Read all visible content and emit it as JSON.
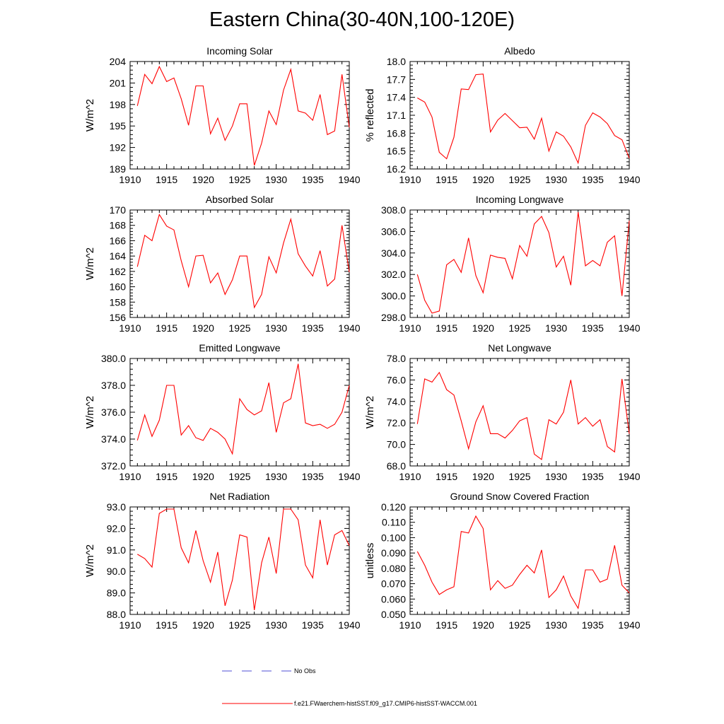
{
  "title": "Eastern China(30-40N,100-120E)",
  "legend": {
    "obs_label": "No Obs",
    "obs_color": "#4f4fd6",
    "model_label": "f.e21.FWaerchem-histSST.f09_g17.CMIP6-histSST-WACCM.001",
    "model_color": "#ff0000"
  },
  "chart_data": [
    {
      "type": "line",
      "title": "Incoming Solar",
      "ylabel": "W/m^2",
      "xlim": [
        1910,
        1940
      ],
      "ylim": [
        189,
        204
      ],
      "yticks": [
        189,
        192,
        195,
        198,
        201,
        204
      ],
      "ytick_labels": [
        "189",
        "192",
        "195",
        "198",
        "201",
        "204"
      ],
      "xticks": [
        1910,
        1915,
        1920,
        1925,
        1930,
        1935,
        1940
      ],
      "x": [
        1911,
        1912,
        1913,
        1914,
        1915,
        1916,
        1917,
        1918,
        1919,
        1920,
        1921,
        1922,
        1923,
        1924,
        1925,
        1926,
        1927,
        1928,
        1929,
        1930,
        1931,
        1932,
        1933,
        1934,
        1935,
        1936,
        1937,
        1938,
        1939,
        1940
      ],
      "values": [
        197.8,
        202.2,
        200.9,
        203.3,
        201.2,
        201.7,
        198.8,
        195.1,
        200.6,
        200.6,
        193.9,
        196.1,
        193.0,
        195.0,
        198.1,
        198.1,
        189.5,
        192.6,
        197.1,
        195.2,
        200.0,
        202.9,
        197.1,
        196.8,
        195.8,
        199.4,
        193.8,
        194.3,
        202.2,
        194.8
      ],
      "color": "#ff0000"
    },
    {
      "type": "line",
      "title": "Albedo",
      "ylabel": "% reflected",
      "xlim": [
        1910,
        1940
      ],
      "ylim": [
        16.2,
        18.0
      ],
      "yticks": [
        16.2,
        16.5,
        16.8,
        17.1,
        17.4,
        17.7,
        18.0
      ],
      "ytick_labels": [
        "16.2",
        "16.5",
        "16.8",
        "17.1",
        "17.4",
        "17.7",
        "18.0"
      ],
      "xticks": [
        1910,
        1915,
        1920,
        1925,
        1930,
        1935,
        1940
      ],
      "x": [
        1911,
        1912,
        1913,
        1914,
        1915,
        1916,
        1917,
        1918,
        1919,
        1920,
        1921,
        1922,
        1923,
        1924,
        1925,
        1926,
        1927,
        1928,
        1929,
        1930,
        1931,
        1932,
        1933,
        1934,
        1935,
        1936,
        1937,
        1938,
        1939,
        1940
      ],
      "values": [
        17.39,
        17.32,
        17.07,
        16.48,
        16.37,
        16.73,
        17.54,
        17.53,
        17.78,
        17.79,
        16.82,
        17.02,
        17.13,
        17.01,
        16.89,
        16.9,
        16.7,
        17.05,
        16.5,
        16.82,
        16.75,
        16.57,
        16.3,
        16.93,
        17.14,
        17.07,
        16.96,
        16.76,
        16.69,
        16.38
      ],
      "color": "#ff0000"
    },
    {
      "type": "line",
      "title": "Absorbed Solar",
      "ylabel": "W/m^2",
      "xlim": [
        1910,
        1940
      ],
      "ylim": [
        156,
        170
      ],
      "yticks": [
        156,
        158,
        160,
        162,
        164,
        166,
        168,
        170
      ],
      "ytick_labels": [
        "156",
        "158",
        "160",
        "162",
        "164",
        "166",
        "168",
        "170"
      ],
      "xticks": [
        1910,
        1915,
        1920,
        1925,
        1930,
        1935,
        1940
      ],
      "x": [
        1911,
        1912,
        1913,
        1914,
        1915,
        1916,
        1917,
        1918,
        1919,
        1920,
        1921,
        1922,
        1923,
        1924,
        1925,
        1926,
        1927,
        1928,
        1929,
        1930,
        1931,
        1932,
        1933,
        1934,
        1935,
        1936,
        1937,
        1938,
        1939,
        1940
      ],
      "values": [
        162.6,
        166.7,
        166.0,
        169.4,
        167.9,
        167.4,
        163.4,
        160.0,
        164.0,
        164.1,
        160.5,
        161.8,
        159.0,
        160.9,
        164.0,
        164.0,
        157.3,
        159.0,
        163.9,
        161.8,
        165.7,
        168.8,
        164.3,
        162.7,
        161.4,
        164.7,
        160.1,
        161.0,
        168.0,
        161.9
      ],
      "color": "#ff0000"
    },
    {
      "type": "line",
      "title": "Incoming Longwave",
      "ylabel": "",
      "xlim": [
        1910,
        1940
      ],
      "ylim": [
        298,
        308
      ],
      "yticks": [
        298,
        300,
        302,
        304,
        306,
        308
      ],
      "ytick_labels": [
        "298.0",
        "300.0",
        "302.0",
        "304.0",
        "306.0",
        "308.0"
      ],
      "xticks": [
        1910,
        1915,
        1920,
        1925,
        1930,
        1935,
        1940
      ],
      "x": [
        1911,
        1912,
        1913,
        1914,
        1915,
        1916,
        1917,
        1918,
        1919,
        1920,
        1921,
        1922,
        1923,
        1924,
        1925,
        1926,
        1927,
        1928,
        1929,
        1930,
        1931,
        1932,
        1933,
        1934,
        1935,
        1936,
        1937,
        1938,
        1939,
        1940
      ],
      "values": [
        302.0,
        299.6,
        298.4,
        298.6,
        302.9,
        303.4,
        302.2,
        305.4,
        301.9,
        300.3,
        303.8,
        303.6,
        303.5,
        301.6,
        304.7,
        303.7,
        306.7,
        307.4,
        305.9,
        302.7,
        303.7,
        301.0,
        307.8,
        302.8,
        303.3,
        302.8,
        305.0,
        305.6,
        300.0,
        307.0
      ],
      "color": "#ff0000"
    },
    {
      "type": "line",
      "title": "Emitted Longwave",
      "ylabel": "W/m^2",
      "xlim": [
        1910,
        1940
      ],
      "ylim": [
        372,
        380
      ],
      "yticks": [
        372,
        374,
        376,
        378,
        380
      ],
      "ytick_labels": [
        "372.0",
        "374.0",
        "376.0",
        "378.0",
        "380.0"
      ],
      "xticks": [
        1910,
        1915,
        1920,
        1925,
        1930,
        1935,
        1940
      ],
      "x": [
        1911,
        1912,
        1913,
        1914,
        1915,
        1916,
        1917,
        1918,
        1919,
        1920,
        1921,
        1922,
        1923,
        1924,
        1925,
        1926,
        1927,
        1928,
        1929,
        1930,
        1931,
        1932,
        1933,
        1934,
        1935,
        1936,
        1937,
        1938,
        1939,
        1940
      ],
      "values": [
        373.9,
        375.8,
        374.2,
        375.4,
        378.0,
        378.0,
        374.3,
        375.0,
        374.1,
        373.9,
        374.8,
        374.5,
        374.0,
        372.9,
        377.0,
        376.2,
        375.8,
        376.1,
        378.2,
        374.5,
        376.7,
        377.0,
        379.6,
        375.2,
        375.0,
        375.1,
        374.8,
        375.1,
        376.0,
        378.0
      ],
      "color": "#ff0000"
    },
    {
      "type": "line",
      "title": "Net Longwave",
      "ylabel": "W/m^2",
      "xlim": [
        1910,
        1940
      ],
      "ylim": [
        68,
        78
      ],
      "yticks": [
        68,
        70,
        72,
        74,
        76,
        78
      ],
      "ytick_labels": [
        "68.0",
        "70.0",
        "72.0",
        "74.0",
        "76.0",
        "78.0"
      ],
      "xticks": [
        1910,
        1915,
        1920,
        1925,
        1930,
        1935,
        1940
      ],
      "x": [
        1911,
        1912,
        1913,
        1914,
        1915,
        1916,
        1917,
        1918,
        1919,
        1920,
        1921,
        1922,
        1923,
        1924,
        1925,
        1926,
        1927,
        1928,
        1929,
        1930,
        1931,
        1932,
        1933,
        1934,
        1935,
        1936,
        1937,
        1938,
        1939,
        1940
      ],
      "values": [
        71.9,
        76.1,
        75.8,
        76.7,
        75.1,
        74.6,
        72.2,
        69.6,
        72.1,
        73.6,
        71.0,
        71.0,
        70.6,
        71.3,
        72.2,
        72.5,
        69.1,
        68.6,
        72.3,
        71.9,
        73.0,
        76.0,
        71.9,
        72.5,
        71.7,
        72.3,
        69.8,
        69.3,
        76.1,
        71.0
      ],
      "color": "#ff0000"
    },
    {
      "type": "line",
      "title": "Net Radiation",
      "ylabel": "W/m^2",
      "xlim": [
        1910,
        1940
      ],
      "ylim": [
        88,
        93
      ],
      "yticks": [
        88,
        89,
        90,
        91,
        92,
        93
      ],
      "ytick_labels": [
        "88.0",
        "89.0",
        "90.0",
        "91.0",
        "92.0",
        "93.0"
      ],
      "xticks": [
        1910,
        1915,
        1920,
        1925,
        1930,
        1935,
        1940
      ],
      "x": [
        1911,
        1912,
        1913,
        1914,
        1915,
        1916,
        1917,
        1918,
        1919,
        1920,
        1921,
        1922,
        1923,
        1924,
        1925,
        1926,
        1927,
        1928,
        1929,
        1930,
        1931,
        1932,
        1933,
        1934,
        1935,
        1936,
        1937,
        1938,
        1939,
        1940
      ],
      "values": [
        90.8,
        90.6,
        90.2,
        92.7,
        92.9,
        92.9,
        91.1,
        90.4,
        91.9,
        90.5,
        89.5,
        90.9,
        88.4,
        89.6,
        91.7,
        91.6,
        88.2,
        90.4,
        91.6,
        89.9,
        92.9,
        92.9,
        92.4,
        90.3,
        89.7,
        92.4,
        90.3,
        91.7,
        91.9,
        91.2
      ],
      "color": "#ff0000"
    },
    {
      "type": "line",
      "title": "Ground Snow Covered Fraction",
      "ylabel": "unitless",
      "xlim": [
        1910,
        1940
      ],
      "ylim": [
        0.05,
        0.12
      ],
      "yticks": [
        0.05,
        0.06,
        0.07,
        0.08,
        0.09,
        0.1,
        0.11,
        0.12
      ],
      "ytick_labels": [
        "0.050",
        "0.060",
        "0.070",
        "0.080",
        "0.090",
        "0.100",
        "0.110",
        "0.120"
      ],
      "xticks": [
        1910,
        1915,
        1920,
        1925,
        1930,
        1935,
        1940
      ],
      "x": [
        1911,
        1912,
        1913,
        1914,
        1915,
        1916,
        1917,
        1918,
        1919,
        1920,
        1921,
        1922,
        1923,
        1924,
        1925,
        1926,
        1927,
        1928,
        1929,
        1930,
        1931,
        1932,
        1933,
        1934,
        1935,
        1936,
        1937,
        1938,
        1939,
        1940
      ],
      "values": [
        0.091,
        0.082,
        0.071,
        0.063,
        0.066,
        0.068,
        0.104,
        0.103,
        0.114,
        0.106,
        0.066,
        0.072,
        0.067,
        0.069,
        0.076,
        0.082,
        0.077,
        0.092,
        0.061,
        0.066,
        0.075,
        0.062,
        0.054,
        0.079,
        0.079,
        0.071,
        0.073,
        0.095,
        0.069,
        0.064
      ],
      "color": "#ff0000"
    }
  ]
}
